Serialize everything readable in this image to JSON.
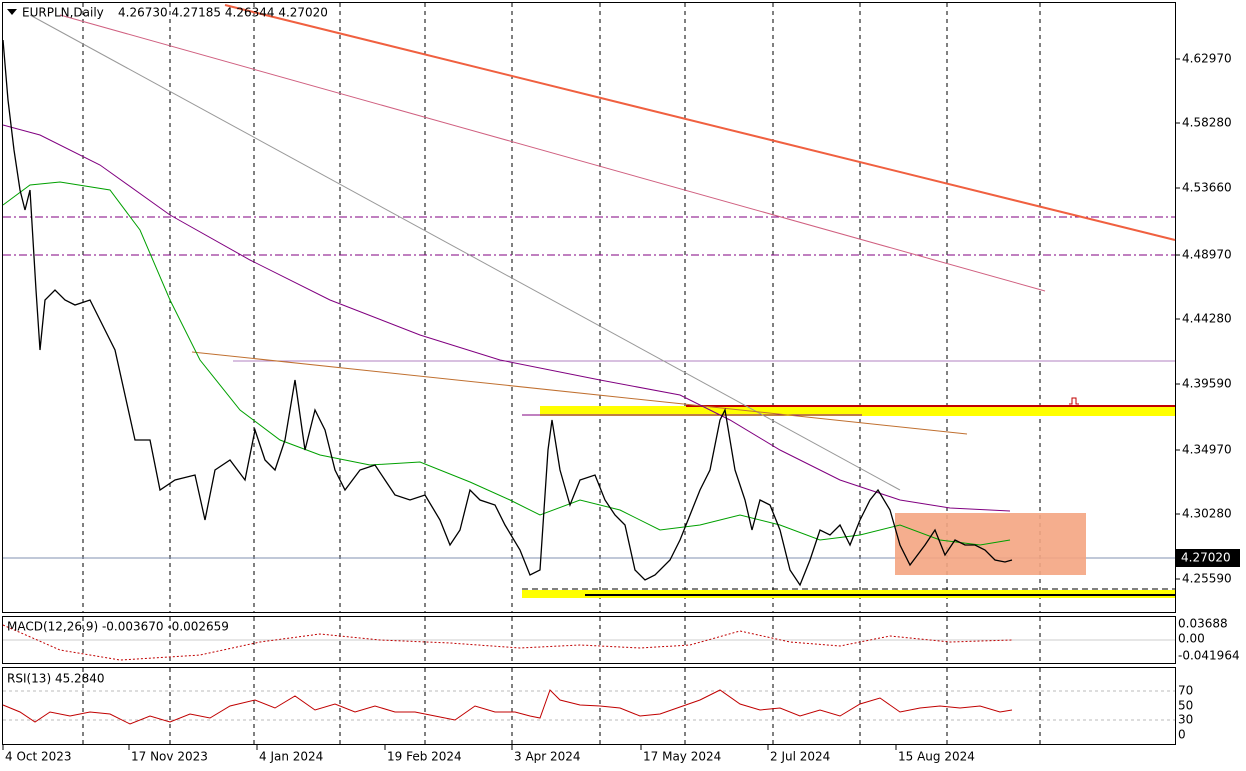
{
  "header": {
    "symbol": "EURPLN,Daily",
    "ohlc": "4.26730 4.27185 4.26344 4.27020"
  },
  "price_axis": [
    "4.62970",
    "4.58280",
    "4.53660",
    "4.48970",
    "4.44280",
    "4.39590",
    "4.34970",
    "4.30280",
    "4.25590"
  ],
  "current_price": "4.27020",
  "macd": {
    "label": "MACD(12,26,9) -0.003670 -0.002659",
    "axis": [
      "0.03688",
      "0.00",
      "-0.041964"
    ]
  },
  "rsi": {
    "label": "RSI(13) 45.2840",
    "axis": [
      "70",
      "50",
      "30",
      "0"
    ]
  },
  "dates": [
    "4 Oct 2023",
    "17 Nov 2023",
    "4 Jan 2024",
    "19 Feb 2024",
    "3 Apr 2024",
    "17 May 2024",
    "2 Jul 2024",
    "15 Aug 2024"
  ]
}
